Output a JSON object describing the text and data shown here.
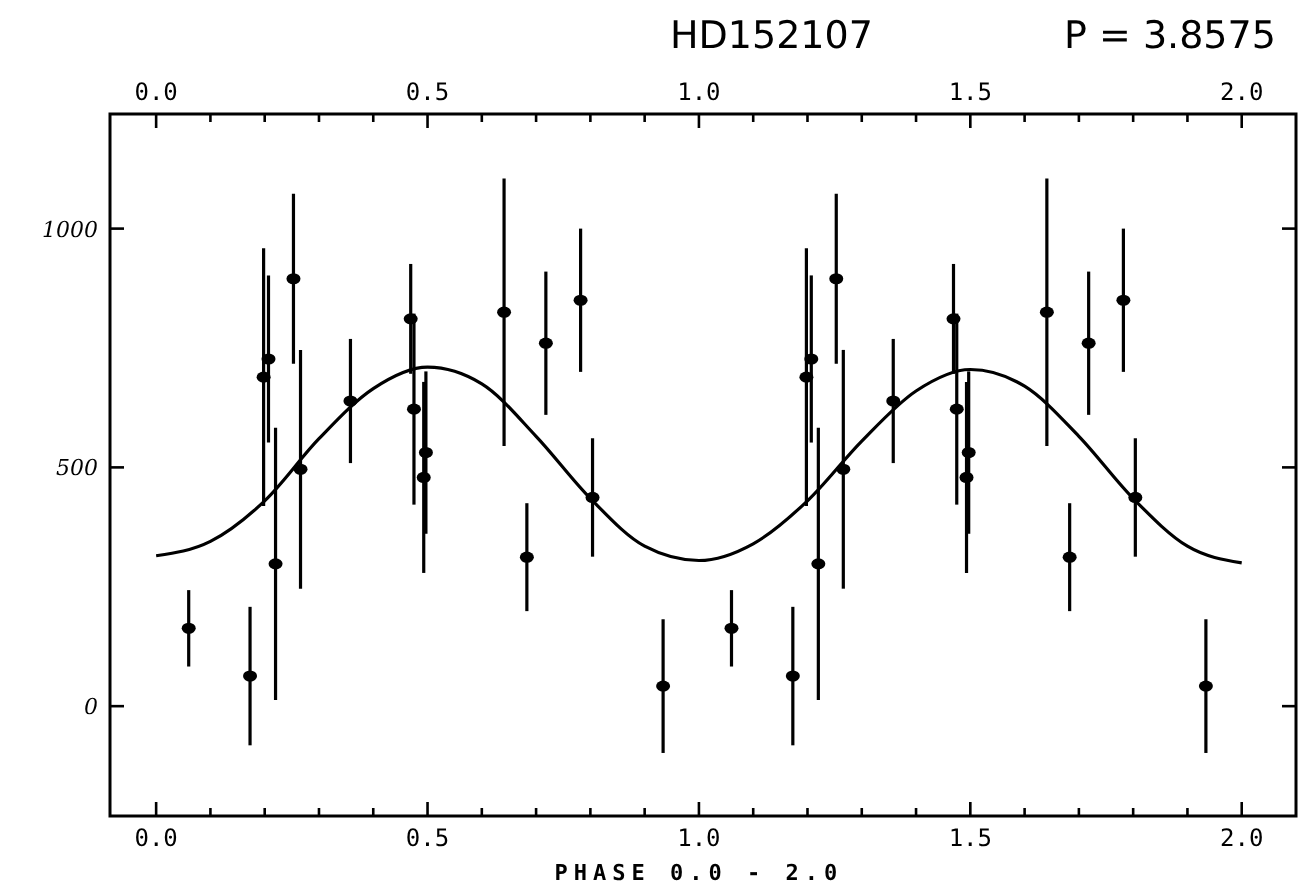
{
  "chart_data": {
    "type": "scatter",
    "title": "HD152107",
    "subtitle": "P = 3.8575",
    "xlabel": "PHASE 0.0 - 2.0",
    "xlim": [
      -0.085,
      2.1
    ],
    "ylim": [
      -230,
      1240
    ],
    "xticks": [
      {
        "value": 0,
        "label": "0.0"
      },
      {
        "value": 0.1,
        "label": null
      },
      {
        "value": 0.2,
        "label": null
      },
      {
        "value": 0.3,
        "label": null
      },
      {
        "value": 0.4,
        "label": null
      },
      {
        "value": 0.5,
        "label": "0.5"
      },
      {
        "value": 0.6,
        "label": null
      },
      {
        "value": 0.7,
        "label": null
      },
      {
        "value": 0.8,
        "label": null
      },
      {
        "value": 0.9,
        "label": null
      },
      {
        "value": 1,
        "label": "1.0"
      },
      {
        "value": 1.1,
        "label": null
      },
      {
        "value": 1.2,
        "label": null
      },
      {
        "value": 1.3,
        "label": null
      },
      {
        "value": 1.4,
        "label": null
      },
      {
        "value": 1.5,
        "label": "1.5"
      },
      {
        "value": 1.6,
        "label": null
      },
      {
        "value": 1.7,
        "label": null
      },
      {
        "value": 1.8,
        "label": null
      },
      {
        "value": 1.9,
        "label": null
      },
      {
        "value": 2,
        "label": "2.0"
      }
    ],
    "x2lim": [
      -0.085,
      2.1
    ],
    "x2ticks": [
      {
        "value": 0,
        "label": "0.0"
      },
      {
        "value": 0.1,
        "label": null
      },
      {
        "value": 0.2,
        "label": null
      },
      {
        "value": 0.3,
        "label": null
      },
      {
        "value": 0.4,
        "label": null
      },
      {
        "value": 0.5,
        "label": "0.5"
      },
      {
        "value": 0.6,
        "label": null
      },
      {
        "value": 0.7,
        "label": null
      },
      {
        "value": 0.8,
        "label": null
      },
      {
        "value": 0.9,
        "label": null
      },
      {
        "value": 1,
        "label": "1.0"
      },
      {
        "value": 1.1,
        "label": null
      },
      {
        "value": 1.2,
        "label": null
      },
      {
        "value": 1.3,
        "label": null
      },
      {
        "value": 1.4,
        "label": null
      },
      {
        "value": 1.5,
        "label": "1.5"
      },
      {
        "value": 1.6,
        "label": null
      },
      {
        "value": 1.7,
        "label": null
      },
      {
        "value": 1.8,
        "label": null
      },
      {
        "value": 1.9,
        "label": null
      },
      {
        "value": 2,
        "label": "2.0"
      }
    ],
    "yticks": [
      0,
      500,
      1000
    ],
    "grid": false,
    "series": [
      {
        "color": "#000000",
        "marker": "circle",
        "x": [
          0.06,
          0.173,
          0.198,
          0.207,
          0.22,
          0.253,
          0.266,
          0.358,
          0.469,
          0.475,
          0.493,
          0.497,
          0.641,
          0.683,
          0.718,
          0.782,
          0.804,
          0.934,
          1.06,
          1.173,
          1.198,
          1.207,
          1.22,
          1.253,
          1.266,
          1.358,
          1.469,
          1.475,
          1.493,
          1.497,
          1.641,
          1.683,
          1.718,
          1.782,
          1.804,
          1.934
        ],
        "values": [
          163,
          63,
          689,
          727,
          298,
          895,
          496,
          639,
          811,
          622,
          479,
          531,
          825,
          312,
          760,
          850,
          437,
          42,
          163,
          63,
          689,
          727,
          298,
          895,
          496,
          639,
          811,
          622,
          479,
          531,
          825,
          312,
          760,
          850,
          437,
          42
        ],
        "errors": [
          80,
          145,
          270,
          175,
          285,
          178,
          250,
          130,
          115,
          200,
          200,
          170,
          280,
          113,
          150,
          150,
          124,
          140,
          80,
          145,
          270,
          175,
          285,
          178,
          250,
          130,
          115,
          200,
          200,
          170,
          280,
          113,
          150,
          150,
          124,
          140
        ]
      },
      {
        "type": "line",
        "color": "#000000",
        "marker": "none",
        "line_style": "solid",
        "x": [
          0,
          0.1,
          0.2,
          0.3,
          0.4,
          0.5,
          0.6,
          0.7,
          0.8,
          0.9,
          1,
          1.1,
          1.2,
          1.3,
          1.4,
          1.5,
          1.6,
          1.7,
          1.8,
          1.9,
          2
        ],
        "values": [
          315,
          345,
          430,
          560,
          665,
          710,
          675,
          565,
          435,
          335,
          305,
          340,
          430,
          555,
          660,
          705,
          670,
          565,
          435,
          335,
          300
        ]
      }
    ]
  }
}
